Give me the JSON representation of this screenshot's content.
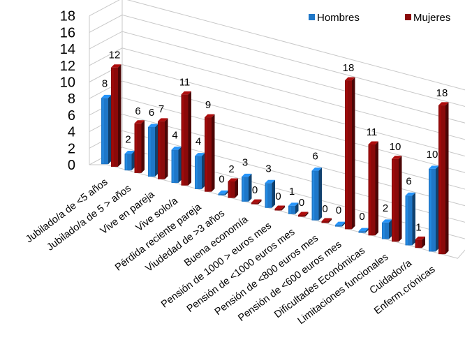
{
  "chart_data": {
    "type": "bar",
    "categories": [
      "Jubilado/a de <5 años",
      "Jubilado/a de 5 > años",
      "Vive en pareja",
      "Vive solo/a",
      "Pérdida reciente pareja",
      "Viudedad de >3 años",
      "Buena economía",
      "Pensión de 1000 > euros mes",
      "Pensión de <1000 euros mes",
      "Pensión de <800 euros mes",
      "Pensión de <600 euros mes",
      "Dificultades Económicas",
      "Limitaciones funcionales",
      "Cuidador/a",
      "Enferm.crónicas"
    ],
    "series": [
      {
        "name": "Hombres",
        "color": "#1f77c8",
        "values": [
          8,
          2,
          6,
          4,
          4,
          0,
          3,
          3,
          1,
          6,
          0,
          0,
          2,
          6,
          10
        ]
      },
      {
        "name": "Mujeres",
        "color": "#8b0a0a",
        "values": [
          12,
          6,
          7,
          11,
          9,
          2,
          0,
          0,
          0,
          0,
          18,
          11,
          10,
          1,
          18
        ]
      }
    ],
    "yticks": [
      "0",
      "2",
      "4",
      "6",
      "8",
      "10",
      "12",
      "14",
      "16",
      "18"
    ],
    "ylim": [
      0,
      18
    ],
    "grid": true,
    "legend": "top-right",
    "style": "3d-clustered-column"
  }
}
